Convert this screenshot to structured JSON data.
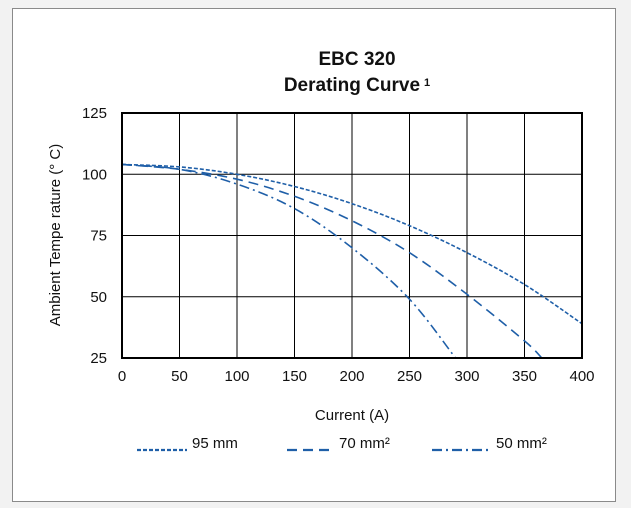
{
  "chart_data": {
    "type": "line",
    "title": "EBC 320",
    "subtitle": "Derating Curve",
    "subtitle_superscript": "1",
    "xlabel": "Current (A)",
    "ylabel": "Ambient  Tempe rature (° C)",
    "xlim": [
      0,
      400
    ],
    "ylim": [
      25,
      125
    ],
    "x_ticks": [
      "0",
      "50",
      "100",
      "150",
      "200",
      "250",
      "300",
      "350",
      "400"
    ],
    "y_ticks": [
      "25",
      "50",
      "75",
      "100",
      "125"
    ],
    "grid": true,
    "legend_position": "bottom",
    "colors": {
      "line": "#1f5fa8",
      "grid": "#000000"
    },
    "series": [
      {
        "name": "95 mm",
        "dash": "dotted",
        "x": [
          0,
          50,
          100,
          150,
          200,
          250,
          300,
          350,
          400
        ],
        "y": [
          104,
          103,
          100,
          95,
          88,
          79,
          68,
          55,
          39
        ]
      },
      {
        "name": "70 mm²",
        "dash": "dashed",
        "x": [
          0,
          50,
          100,
          150,
          200,
          250,
          300,
          350,
          365
        ],
        "y": [
          104,
          102,
          98,
          91,
          81,
          68,
          51,
          32,
          25
        ]
      },
      {
        "name": "50 mm²",
        "dash": "dash-dot",
        "x": [
          0,
          50,
          100,
          150,
          200,
          250,
          290
        ],
        "y": [
          104,
          102,
          96,
          86,
          70,
          49,
          25
        ]
      }
    ]
  }
}
